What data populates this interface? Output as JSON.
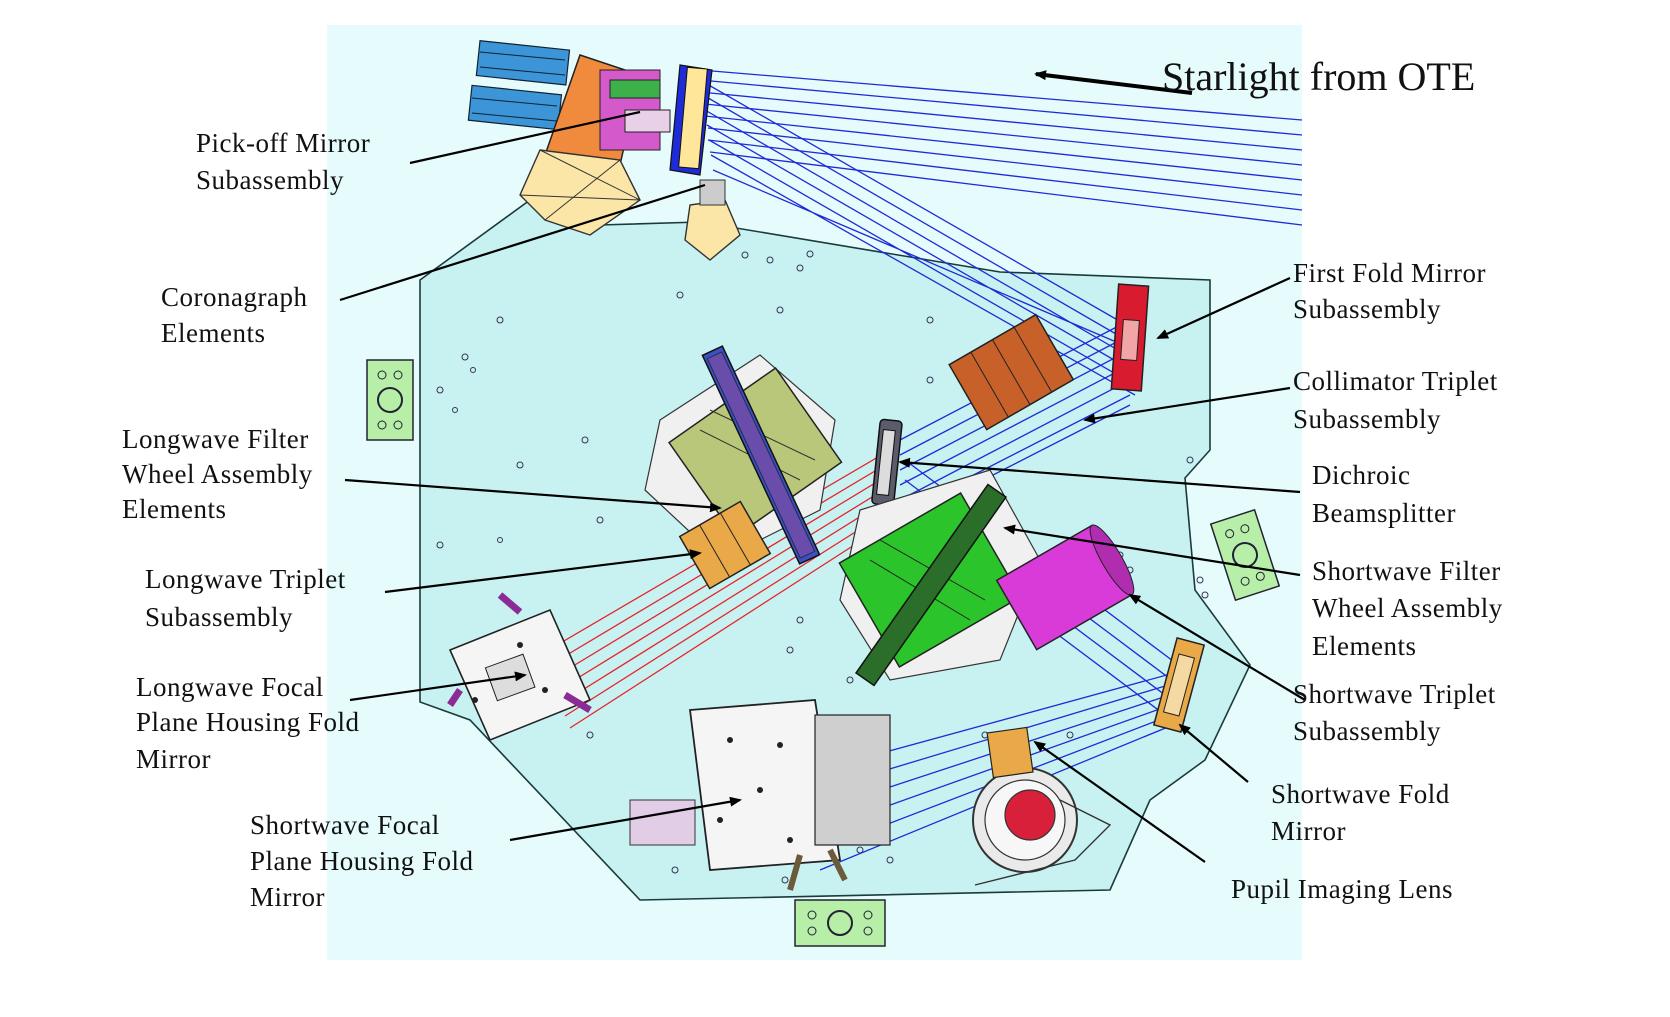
{
  "title": "Starlight from OTE",
  "labels": {
    "pickoff": [
      "Pick-off Mirror",
      "Subassembly"
    ],
    "coronagraph": [
      "Coronagraph",
      "Elements"
    ],
    "lw_filter": [
      "Longwave Filter",
      "Wheel Assembly",
      "Elements"
    ],
    "lw_triplet": [
      "Longwave Triplet",
      "Subassembly"
    ],
    "lw_focal": [
      "Longwave Focal",
      "Plane Housing Fold",
      "Mirror"
    ],
    "sw_focal": [
      "Shortwave Focal",
      "Plane Housing Fold",
      "Mirror"
    ],
    "first_fold": [
      "First Fold Mirror",
      "Subassembly"
    ],
    "collimator": [
      "Collimator Triplet",
      "Subassembly"
    ],
    "dichroic": [
      "Dichroic",
      "Beamsplitter"
    ],
    "sw_filter": [
      "Shortwave Filter",
      "Wheel  Assembly",
      "Elements"
    ],
    "sw_triplet": [
      "Shortwave Triplet",
      "Subassembly"
    ],
    "sw_fold": [
      "Shortwave Fold",
      "Mirror"
    ],
    "pupil": [
      "Pupil Imaging Lens"
    ]
  },
  "colors": {
    "bench": "#ccf3f3",
    "panel": "#e5fbfb",
    "shortwave_beam": "#1f2bd8",
    "longwave_beam": "#e8232a",
    "sw_filter_wheel": "#2bc42b",
    "lw_filter_wheel": "#b9c77a",
    "sw_triplet": "#d83bd8",
    "triplets": "#e9a948",
    "collimator": "#c8602a",
    "first_fold": "#d81b2e",
    "pickoff_body": "#f08a3c",
    "detector_modules": "#3b95d6",
    "mounts": "#b6f3a6"
  }
}
